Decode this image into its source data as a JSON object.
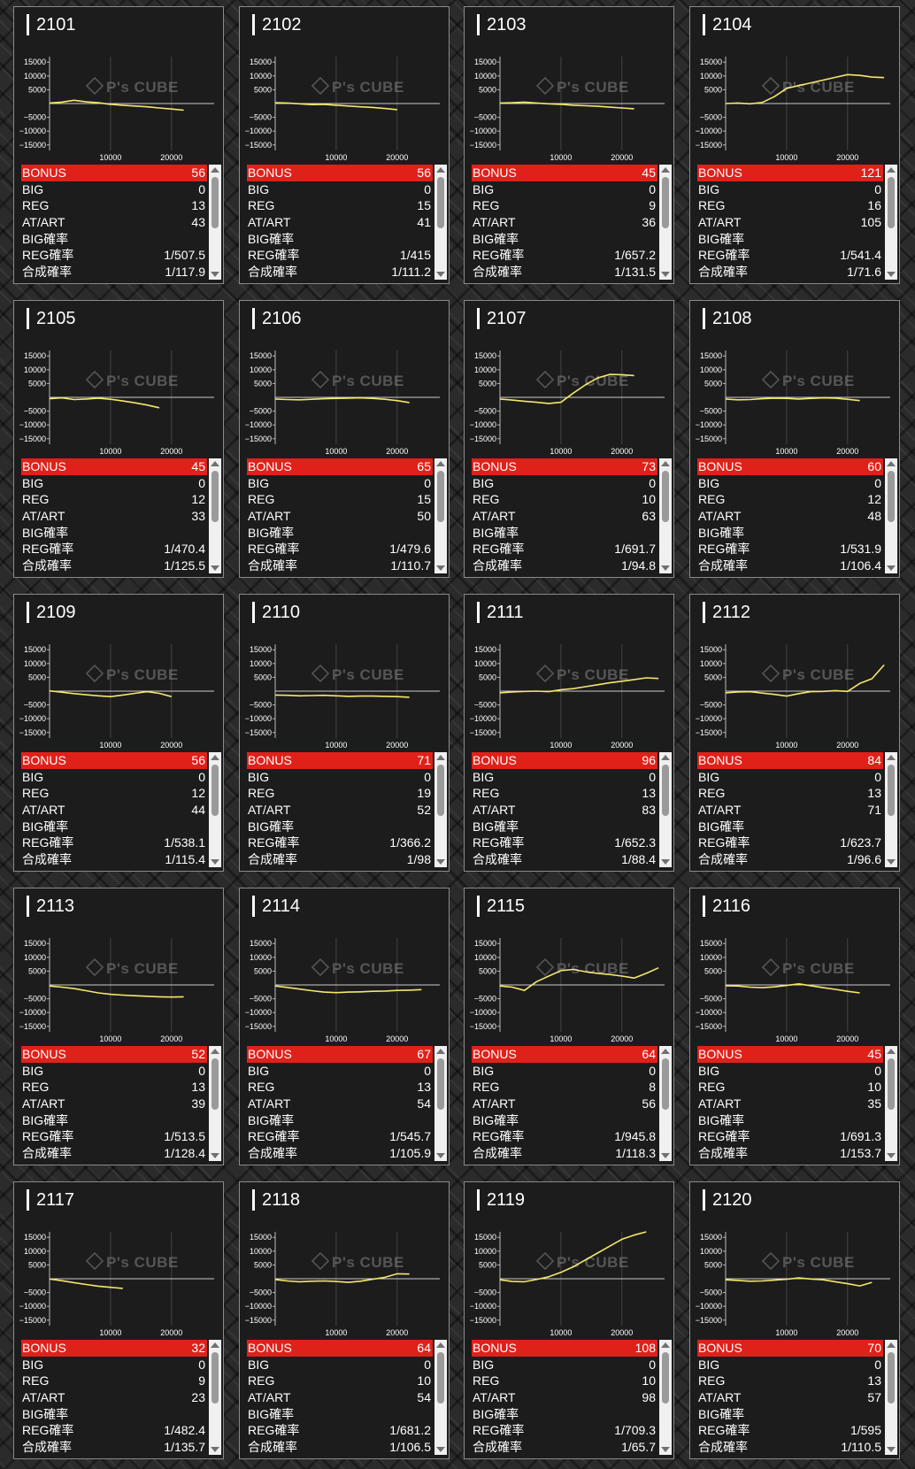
{
  "watermark": "P's CUBE",
  "stat_labels": {
    "bonus": "BONUS",
    "big": "BIG",
    "reg": "REG",
    "atart": "AT/ART",
    "big_prob": "BIG確率",
    "reg_prob": "REG確率",
    "combined_prob": "合成確率"
  },
  "colors": {
    "bonus_bar": "#e0211a",
    "line": "#f5e76b",
    "panel": "#1c1c1c"
  },
  "units": [
    {
      "id": "2101",
      "bonus": "56",
      "big": "0",
      "reg": "13",
      "atart": "43",
      "big_prob": "",
      "reg_prob": "1/507.5",
      "combined_prob": "1/117.9"
    },
    {
      "id": "2102",
      "bonus": "56",
      "big": "0",
      "reg": "15",
      "atart": "41",
      "big_prob": "",
      "reg_prob": "1/415",
      "combined_prob": "1/111.2"
    },
    {
      "id": "2103",
      "bonus": "45",
      "big": "0",
      "reg": "9",
      "atart": "36",
      "big_prob": "",
      "reg_prob": "1/657.2",
      "combined_prob": "1/131.5"
    },
    {
      "id": "2104",
      "bonus": "121",
      "big": "0",
      "reg": "16",
      "atart": "105",
      "big_prob": "",
      "reg_prob": "1/541.4",
      "combined_prob": "1/71.6"
    },
    {
      "id": "2105",
      "bonus": "45",
      "big": "0",
      "reg": "12",
      "atart": "33",
      "big_prob": "",
      "reg_prob": "1/470.4",
      "combined_prob": "1/125.5"
    },
    {
      "id": "2106",
      "bonus": "65",
      "big": "0",
      "reg": "15",
      "atart": "50",
      "big_prob": "",
      "reg_prob": "1/479.6",
      "combined_prob": "1/110.7"
    },
    {
      "id": "2107",
      "bonus": "73",
      "big": "0",
      "reg": "10",
      "atart": "63",
      "big_prob": "",
      "reg_prob": "1/691.7",
      "combined_prob": "1/94.8"
    },
    {
      "id": "2108",
      "bonus": "60",
      "big": "0",
      "reg": "12",
      "atart": "48",
      "big_prob": "",
      "reg_prob": "1/531.9",
      "combined_prob": "1/106.4"
    },
    {
      "id": "2109",
      "bonus": "56",
      "big": "0",
      "reg": "12",
      "atart": "44",
      "big_prob": "",
      "reg_prob": "1/538.1",
      "combined_prob": "1/115.4"
    },
    {
      "id": "2110",
      "bonus": "71",
      "big": "0",
      "reg": "19",
      "atart": "52",
      "big_prob": "",
      "reg_prob": "1/366.2",
      "combined_prob": "1/98"
    },
    {
      "id": "2111",
      "bonus": "96",
      "big": "0",
      "reg": "13",
      "atart": "83",
      "big_prob": "",
      "reg_prob": "1/652.3",
      "combined_prob": "1/88.4"
    },
    {
      "id": "2112",
      "bonus": "84",
      "big": "0",
      "reg": "13",
      "atart": "71",
      "big_prob": "",
      "reg_prob": "1/623.7",
      "combined_prob": "1/96.6"
    },
    {
      "id": "2113",
      "bonus": "52",
      "big": "0",
      "reg": "13",
      "atart": "39",
      "big_prob": "",
      "reg_prob": "1/513.5",
      "combined_prob": "1/128.4"
    },
    {
      "id": "2114",
      "bonus": "67",
      "big": "0",
      "reg": "13",
      "atart": "54",
      "big_prob": "",
      "reg_prob": "1/545.7",
      "combined_prob": "1/105.9"
    },
    {
      "id": "2115",
      "bonus": "64",
      "big": "0",
      "reg": "8",
      "atart": "56",
      "big_prob": "",
      "reg_prob": "1/945.8",
      "combined_prob": "1/118.3"
    },
    {
      "id": "2116",
      "bonus": "45",
      "big": "0",
      "reg": "10",
      "atart": "35",
      "big_prob": "",
      "reg_prob": "1/691.3",
      "combined_prob": "1/153.7"
    },
    {
      "id": "2117",
      "bonus": "32",
      "big": "0",
      "reg": "9",
      "atart": "23",
      "big_prob": "",
      "reg_prob": "1/482.4",
      "combined_prob": "1/135.7"
    },
    {
      "id": "2118",
      "bonus": "64",
      "big": "0",
      "reg": "10",
      "atart": "54",
      "big_prob": "",
      "reg_prob": "1/681.2",
      "combined_prob": "1/106.5"
    },
    {
      "id": "2119",
      "bonus": "108",
      "big": "0",
      "reg": "10",
      "atart": "98",
      "big_prob": "",
      "reg_prob": "1/709.3",
      "combined_prob": "1/65.7"
    },
    {
      "id": "2120",
      "bonus": "70",
      "big": "0",
      "reg": "13",
      "atart": "57",
      "big_prob": "",
      "reg_prob": "1/595",
      "combined_prob": "1/110.5"
    }
  ],
  "chart_data": {
    "type": "line",
    "title": "",
    "xlabel": "",
    "ylabel": "",
    "xlim": [
      0,
      27000
    ],
    "ylim": [
      -17000,
      17000
    ],
    "x_ticks": [
      10000,
      20000
    ],
    "y_ticks": [
      15000,
      10000,
      5000,
      0,
      -5000,
      -10000,
      -15000
    ],
    "y_tick_labels": [
      "15000",
      "10000",
      "5000",
      "",
      "−5000",
      "−10000",
      "−15000"
    ],
    "grid": true,
    "x": [
      0,
      2000,
      4000,
      6000,
      8000,
      10000,
      12000,
      14000,
      16000,
      18000,
      20000,
      22000,
      24000,
      26000
    ],
    "series": [
      {
        "unit": "2101",
        "values": [
          200,
          500,
          1200,
          600,
          300,
          -300,
          -600,
          -900,
          -1200,
          -1600,
          -2000,
          -2400,
          null,
          null
        ]
      },
      {
        "unit": "2102",
        "values": [
          300,
          200,
          -100,
          -400,
          -300,
          -600,
          -900,
          -1200,
          -1400,
          -1800,
          -2200,
          null,
          null,
          null
        ]
      },
      {
        "unit": "2103",
        "values": [
          200,
          300,
          500,
          200,
          -100,
          -300,
          -600,
          -800,
          -1000,
          -1300,
          -1600,
          -1900,
          null,
          null
        ]
      },
      {
        "unit": "2104",
        "values": [
          0,
          200,
          -100,
          400,
          2500,
          5500,
          6500,
          7500,
          8500,
          9500,
          10500,
          10200,
          9600,
          9400
        ]
      },
      {
        "unit": "2105",
        "values": [
          -500,
          -200,
          -800,
          -600,
          -300,
          -700,
          -1300,
          -2000,
          -2800,
          -3800,
          null,
          null,
          null,
          null
        ]
      },
      {
        "unit": "2106",
        "values": [
          -600,
          -800,
          -900,
          -700,
          -500,
          -400,
          -300,
          -200,
          -400,
          -700,
          -1200,
          -1900,
          null,
          null
        ]
      },
      {
        "unit": "2107",
        "values": [
          -600,
          -1000,
          -1400,
          -1800,
          -2200,
          -1800,
          1500,
          4500,
          7000,
          8300,
          8200,
          7900,
          null,
          null
        ]
      },
      {
        "unit": "2108",
        "values": [
          -600,
          -900,
          -800,
          -500,
          -300,
          -400,
          -600,
          -400,
          -200,
          -300,
          -700,
          -1200,
          null,
          null
        ]
      },
      {
        "unit": "2109",
        "values": [
          100,
          -400,
          -900,
          -1300,
          -1700,
          -2000,
          -1400,
          -800,
          -200,
          -800,
          -2000,
          null,
          null,
          null
        ]
      },
      {
        "unit": "2110",
        "values": [
          -1400,
          -1500,
          -1700,
          -1600,
          -1500,
          -1700,
          -1900,
          -1800,
          -1800,
          -1900,
          -2000,
          -2200,
          null,
          null
        ]
      },
      {
        "unit": "2111",
        "values": [
          -600,
          -300,
          -100,
          0,
          -200,
          500,
          900,
          1600,
          2300,
          3000,
          3600,
          4200,
          4800,
          4600
        ]
      },
      {
        "unit": "2112",
        "values": [
          -600,
          -300,
          -200,
          -700,
          -1200,
          -1800,
          -900,
          -200,
          -100,
          200,
          -100,
          2800,
          4500,
          9500
        ]
      },
      {
        "unit": "2113",
        "values": [
          -400,
          -800,
          -1300,
          -2100,
          -2900,
          -3400,
          -3700,
          -3900,
          -4100,
          -4300,
          -4400,
          -4300,
          null,
          null
        ]
      },
      {
        "unit": "2114",
        "values": [
          -400,
          -900,
          -1500,
          -2100,
          -2600,
          -2800,
          -2600,
          -2500,
          -2300,
          -2200,
          -2000,
          -1900,
          -1700,
          null
        ]
      },
      {
        "unit": "2115",
        "values": [
          -400,
          -800,
          -2000,
          1200,
          3200,
          5200,
          5600,
          4800,
          4200,
          3800,
          3200,
          2500,
          4200,
          6200
        ]
      },
      {
        "unit": "2116",
        "values": [
          -300,
          -400,
          -800,
          -1000,
          -700,
          -200,
          400,
          -300,
          -1000,
          -1600,
          -2300,
          -2900,
          null,
          null
        ]
      },
      {
        "unit": "2117",
        "values": [
          -100,
          -700,
          -1400,
          -2100,
          -2700,
          -3100,
          -3500,
          null,
          null,
          null,
          null,
          null,
          null,
          null
        ]
      },
      {
        "unit": "2118",
        "values": [
          -300,
          -800,
          -1100,
          -900,
          -800,
          -1000,
          -1300,
          -900,
          -200,
          500,
          1800,
          1700,
          null,
          null
        ]
      },
      {
        "unit": "2119",
        "values": [
          -400,
          -1000,
          -1100,
          -300,
          700,
          2300,
          4300,
          6800,
          9300,
          11800,
          14300,
          15800,
          17000,
          null
        ]
      },
      {
        "unit": "2120",
        "values": [
          -400,
          -600,
          -900,
          -800,
          -500,
          -200,
          300,
          -100,
          -400,
          -1100,
          -1800,
          -2600,
          -1300,
          null
        ]
      }
    ]
  }
}
